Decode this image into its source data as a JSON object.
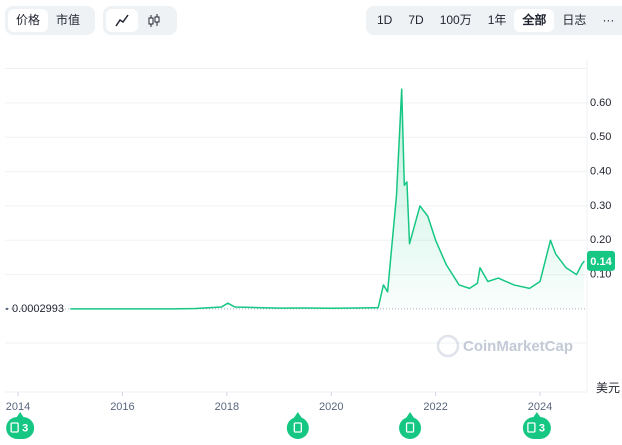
{
  "toolbar": {
    "metric_tabs": [
      "价格",
      "市值"
    ],
    "ranges": [
      "1D",
      "7D",
      "100万",
      "1年",
      "全部",
      "日志"
    ],
    "more": "···"
  },
  "chart_data": {
    "type": "line",
    "x": [
      2015.0,
      2016.0,
      2017.0,
      2017.4,
      2017.9,
      2018.02,
      2018.15,
      2018.6,
      2019.0,
      2019.5,
      2020.0,
      2020.5,
      2020.9,
      2021.0,
      2021.08,
      2021.25,
      2021.35,
      2021.4,
      2021.45,
      2021.5,
      2021.7,
      2021.85,
      2022.0,
      2022.2,
      2022.45,
      2022.65,
      2022.8,
      2022.85,
      2023.0,
      2023.2,
      2023.5,
      2023.8,
      2024.0,
      2024.2,
      2024.3,
      2024.5,
      2024.7,
      2024.8,
      2024.85
    ],
    "series": [
      {
        "name": "价格",
        "color": "#16c784",
        "values": [
          0.0003,
          0.0002,
          0.0003,
          0.0015,
          0.006,
          0.017,
          0.006,
          0.004,
          0.0025,
          0.003,
          0.002,
          0.003,
          0.004,
          0.07,
          0.05,
          0.33,
          0.64,
          0.36,
          0.37,
          0.19,
          0.3,
          0.27,
          0.2,
          0.13,
          0.07,
          0.06,
          0.075,
          0.12,
          0.08,
          0.09,
          0.07,
          0.06,
          0.08,
          0.2,
          0.16,
          0.12,
          0.1,
          0.13,
          0.14
        ]
      }
    ],
    "xlim": [
      2013.75,
      2024.9
    ],
    "xticks": [
      2014,
      2016,
      2018,
      2020,
      2022,
      2024
    ],
    "ylim": [
      0,
      0.7
    ],
    "yticks": [
      {
        "value": 0.1,
        "label": "0.10"
      },
      {
        "value": 0.2,
        "label": "0.20"
      },
      {
        "value": 0.3,
        "label": "0.30"
      },
      {
        "value": 0.4,
        "label": "0.40"
      },
      {
        "value": 0.5,
        "label": "0.50"
      },
      {
        "value": 0.6,
        "label": "0.60"
      }
    ],
    "grid": true,
    "start_price": 0.0002993,
    "current_price": 0.14,
    "currency": "美元",
    "watermark": "CoinMarketCap",
    "events": [
      {
        "x": 2014.04,
        "count": 3
      },
      {
        "x": 2019.36
      },
      {
        "x": 2021.51
      },
      {
        "x": 2023.94,
        "count": 3
      }
    ]
  }
}
